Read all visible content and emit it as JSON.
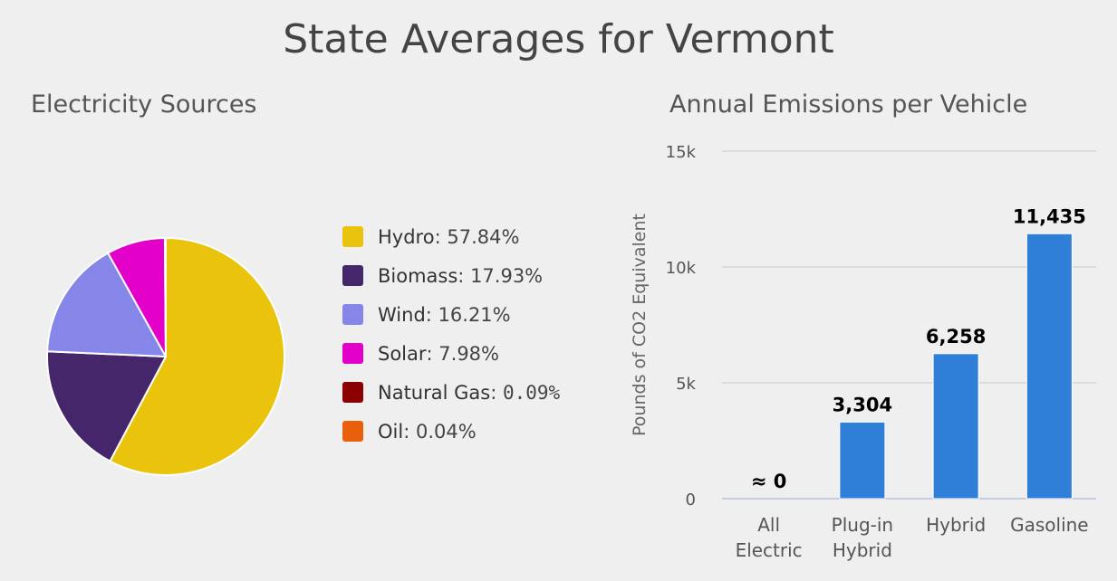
{
  "page_title": "State Averages for Vermont",
  "chart_data": [
    {
      "type": "pie",
      "title": "Electricity Sources",
      "slices": [
        {
          "name": "Hydro",
          "value": 57.84,
          "label": "57.84%",
          "color": "#eac40c"
        },
        {
          "name": "Biomass",
          "value": 17.93,
          "label": "17.93%",
          "color": "#46266b"
        },
        {
          "name": "Wind",
          "value": 16.21,
          "label": "16.21%",
          "color": "#8686e8"
        },
        {
          "name": "Solar",
          "value": 7.98,
          "label": "7.98%",
          "color": "#e300c8"
        },
        {
          "name": "Natural Gas",
          "value": 0.09,
          "label": "0.09%",
          "color": "#8b0000"
        },
        {
          "name": "Oil",
          "value": 0.04,
          "label": "0.04%",
          "color": "#e8600c"
        }
      ],
      "legend_position": "right"
    },
    {
      "type": "bar",
      "title": "Annual Emissions per Vehicle",
      "ylabel": "Pounds of CO2 Equivalent",
      "categories": [
        [
          "All",
          "Electric"
        ],
        [
          "Plug-in",
          "Hybrid"
        ],
        [
          "Hybrid"
        ],
        [
          "Gasoline"
        ]
      ],
      "values": [
        0,
        3304,
        6258,
        11435
      ],
      "data_labels": [
        "≈ 0",
        "3,304",
        "6,258",
        "11,435"
      ],
      "ylim": [
        0,
        15000
      ],
      "yticks": [
        0,
        5000,
        10000,
        15000
      ],
      "ytick_labels": [
        "0",
        "5k",
        "10k",
        "15k"
      ],
      "grid": true,
      "bar_color": "#2f7ed8"
    }
  ]
}
